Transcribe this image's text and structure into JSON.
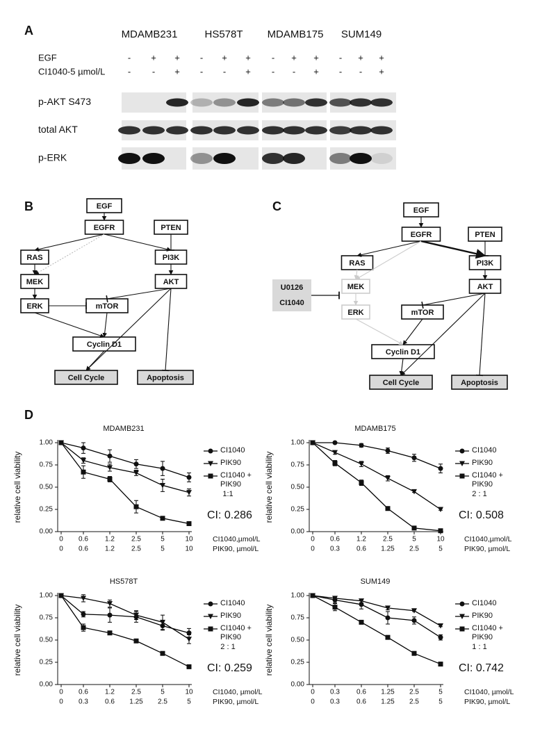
{
  "panel_a": {
    "label": "A",
    "cell_lines": [
      "MDAMB231",
      "HS578T",
      "MDAMB175",
      "SUM149"
    ],
    "treatments": [
      {
        "name": "EGF",
        "marks": [
          "-",
          "+",
          "+",
          "-",
          "+",
          "+",
          "-",
          "+",
          "+",
          "-",
          "+",
          "+"
        ]
      },
      {
        "name": "CI1040-5 µmol/L",
        "marks": [
          "-",
          "-",
          "+",
          "-",
          "-",
          "+",
          "-",
          "-",
          "+",
          "-",
          "-",
          "+"
        ]
      }
    ],
    "blots": [
      "p-AKT S473",
      "total AKT",
      "p-ERK"
    ]
  },
  "panel_b": {
    "label": "B",
    "nodes": [
      "EGF",
      "EGFR",
      "PTEN",
      "RAS",
      "PI3K",
      "MEK",
      "AKT",
      "ERK",
      "mTOR",
      "Cyclin D1",
      "Cell Cycle",
      "Apoptosis"
    ]
  },
  "panel_c": {
    "label": "C",
    "nodes": [
      "EGF",
      "EGFR",
      "PTEN",
      "RAS",
      "PI3K",
      "MEK",
      "AKT",
      "ERK",
      "mTOR",
      "Cyclin D1",
      "Cell Cycle",
      "Apoptosis"
    ],
    "inhibitors": [
      "U0126",
      "CI1040"
    ]
  },
  "panel_d": {
    "label": "D"
  },
  "chart_data": [
    {
      "type": "line",
      "title": "MDAMB231",
      "ylabel": "relative cell viability",
      "categories": [
        "0",
        "0.6",
        "1.2",
        "2.5",
        "5",
        "10"
      ],
      "xlabel": "CI1040,µmol/L",
      "categories2": [
        "0",
        "0.6",
        "1.2",
        "2.5",
        "5",
        "10"
      ],
      "xlabel2": "PIK90, µmol/L",
      "ylim": [
        0,
        1
      ],
      "yticks": [
        {
          "value": 0,
          "label": "0.00"
        },
        {
          "value": 0.25,
          "label": "0.25"
        },
        {
          "value": 0.5,
          "label": "0.50"
        },
        {
          "value": 0.75,
          "label": "0.75"
        },
        {
          "value": 1,
          "label": "1.00"
        }
      ],
      "ratio": "1:1",
      "annotation": "CI: 0.286",
      "series": [
        {
          "name": "CI1040",
          "marker": "circle",
          "color": "#000",
          "values": [
            1,
            0.94,
            0.85,
            0.76,
            0.71,
            0.61
          ],
          "err": [
            0,
            0.06,
            0.07,
            0.05,
            0.08,
            0.05
          ]
        },
        {
          "name": "PIK90",
          "marker": "triangle",
          "color": "#000",
          "values": [
            1,
            0.8,
            0.72,
            0.66,
            0.52,
            0.44
          ],
          "err": [
            0,
            0.03,
            0.04,
            0.03,
            0.07,
            0.04
          ]
        },
        {
          "name": "CI1040 + PIK90",
          "marker": "square",
          "color": "#000",
          "values": [
            1,
            0.67,
            0.59,
            0.28,
            0.15,
            0.09
          ],
          "err": [
            0,
            0.07,
            0.03,
            0.07,
            0.02,
            0.01
          ]
        }
      ]
    },
    {
      "type": "line",
      "title": "MDAMB175",
      "ylabel": "relative cell viability",
      "categories": [
        "0",
        "0.6",
        "1.2",
        "2.5",
        "5",
        "10"
      ],
      "xlabel": "CI1040,µmol/L",
      "categories2": [
        "0",
        "0.3",
        "0.6",
        "1.25",
        "2.5",
        "5"
      ],
      "xlabel2": "PIK90, µmol/L",
      "ylim": [
        0,
        1
      ],
      "yticks": [
        {
          "value": 0,
          "label": "0.00"
        },
        {
          "value": 0.25,
          "label": "0.25"
        },
        {
          "value": 0.5,
          "label": "0.50"
        },
        {
          "value": 0.75,
          "label": "0.75"
        },
        {
          "value": 1,
          "label": "1.00"
        }
      ],
      "ratio": "2 : 1",
      "annotation": "CI: 0.508",
      "series": [
        {
          "name": "CI1040",
          "marker": "circle",
          "color": "#000",
          "values": [
            1,
            1,
            0.97,
            0.91,
            0.83,
            0.71
          ],
          "err": [
            0.01,
            0.01,
            0.02,
            0.03,
            0.04,
            0.05
          ]
        },
        {
          "name": "PIK90",
          "marker": "triangle",
          "color": "#000",
          "values": [
            1,
            0.89,
            0.76,
            0.6,
            0.45,
            0.25
          ],
          "err": [
            0.01,
            0.02,
            0.03,
            0.03,
            0.01,
            0.01
          ]
        },
        {
          "name": "CI1040 + PIK90",
          "marker": "square",
          "color": "#000",
          "values": [
            1,
            0.77,
            0.55,
            0.26,
            0.04,
            0.01
          ],
          "err": [
            0,
            0.03,
            0.03,
            0.01,
            0.01,
            0
          ]
        }
      ]
    },
    {
      "type": "line",
      "title": "HS578T",
      "ylabel": "relative cell viability",
      "categories": [
        "0",
        "0.6",
        "1.2",
        "2.5",
        "5",
        "10"
      ],
      "xlabel": "CI1040, µmol/L",
      "categories2": [
        "0",
        "0.3",
        "0.6",
        "1.25",
        "2.5",
        "5"
      ],
      "xlabel2": "PIK90, µmol/L",
      "ylim": [
        0,
        1
      ],
      "yticks": [
        {
          "value": 0,
          "label": "0.00"
        },
        {
          "value": 0.25,
          "label": "0.25"
        },
        {
          "value": 0.5,
          "label": "0.50"
        },
        {
          "value": 0.75,
          "label": "0.75"
        },
        {
          "value": 1,
          "label": "1.00"
        }
      ],
      "ratio": "2 : 1",
      "annotation": "CI: 0.259",
      "series": [
        {
          "name": "CI1040",
          "marker": "circle",
          "color": "#000",
          "values": [
            1,
            0.79,
            0.78,
            0.76,
            0.66,
            0.58
          ],
          "err": [
            0,
            0.03,
            0.08,
            0.06,
            0.05,
            0.05
          ]
        },
        {
          "name": "PIK90",
          "marker": "triangle",
          "color": "#000",
          "values": [
            1,
            0.97,
            0.91,
            0.78,
            0.7,
            0.51
          ],
          "err": [
            0,
            0.04,
            0.04,
            0.05,
            0.08,
            0.05
          ]
        },
        {
          "name": "CI1040 + PIK90",
          "marker": "square",
          "color": "#000",
          "values": [
            1,
            0.64,
            0.58,
            0.49,
            0.35,
            0.2
          ],
          "err": [
            0,
            0.04,
            0.02,
            0.02,
            0.01,
            0.01
          ]
        }
      ]
    },
    {
      "type": "line",
      "title": "SUM149",
      "ylabel": "relative cell viability",
      "categories": [
        "0",
        "0.3",
        "0.6",
        "1.25",
        "2.5",
        "5"
      ],
      "xlabel": "CI1040, µmol/L",
      "categories2": [
        "0",
        "0.3",
        "0.6",
        "1.25",
        "2.5",
        "5"
      ],
      "xlabel2": "PIK90, µmol/L",
      "ylim": [
        0,
        1
      ],
      "yticks": [
        {
          "value": 0,
          "label": "0.00"
        },
        {
          "value": 0.25,
          "label": "0.25"
        },
        {
          "value": 0.5,
          "label": "0.50"
        },
        {
          "value": 0.75,
          "label": "0.75"
        },
        {
          "value": 1,
          "label": "1.00"
        }
      ],
      "ratio": "1 : 1",
      "annotation": "CI: 0.742",
      "series": [
        {
          "name": "CI1040",
          "marker": "circle",
          "color": "#000",
          "values": [
            1,
            0.95,
            0.9,
            0.75,
            0.72,
            0.53
          ],
          "err": [
            0,
            0.03,
            0.05,
            0.07,
            0.04,
            0.03
          ]
        },
        {
          "name": "PIK90",
          "marker": "triangle",
          "color": "#000",
          "values": [
            1,
            0.97,
            0.94,
            0.86,
            0.83,
            0.66
          ],
          "err": [
            0,
            0.02,
            0.02,
            0.02,
            0.01,
            0.01
          ]
        },
        {
          "name": "CI1040 + PIK90",
          "marker": "square",
          "color": "#000",
          "values": [
            1,
            0.87,
            0.7,
            0.53,
            0.35,
            0.23
          ],
          "err": [
            0,
            0.04,
            0.02,
            0.01,
            0.01,
            0.01
          ]
        }
      ]
    }
  ]
}
